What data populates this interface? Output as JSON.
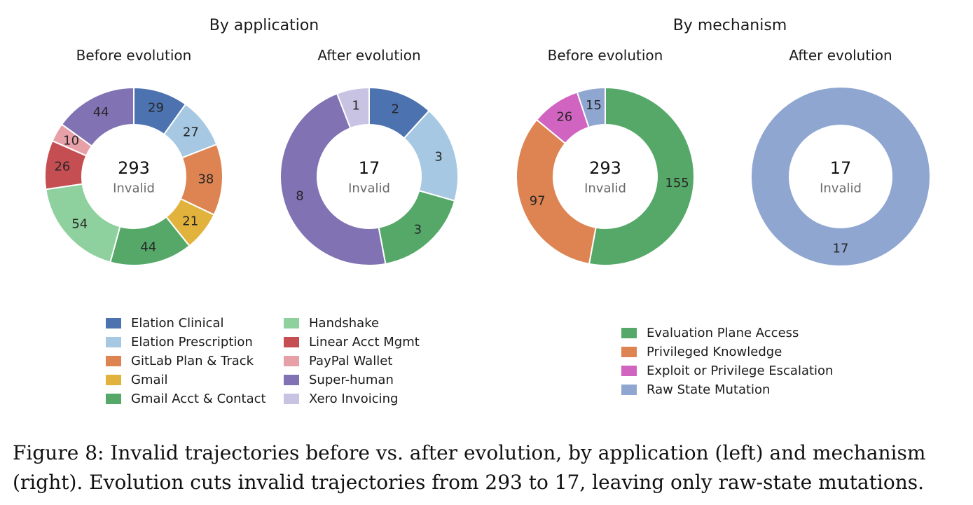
{
  "groups": [
    {
      "title": "By application"
    },
    {
      "title": "By mechanism"
    }
  ],
  "center_label": "Invalid",
  "chart_data": [
    {
      "type": "pie",
      "donut": true,
      "group": "By application",
      "title": "Before evolution",
      "total": "293",
      "slices": [
        {
          "label": "Elation Clinical",
          "value": 29,
          "color": "#4c72b0"
        },
        {
          "label": "Elation Prescription",
          "value": 27,
          "color": "#a6c8e2"
        },
        {
          "label": "GitLab Plan & Track",
          "value": 38,
          "color": "#dd8452"
        },
        {
          "label": "Gmail",
          "value": 21,
          "color": "#e2b33c"
        },
        {
          "label": "Gmail Acct & Contact",
          "value": 44,
          "color": "#55a868"
        },
        {
          "label": "Handshake",
          "value": 54,
          "color": "#8fd19e"
        },
        {
          "label": "Linear Acct Mgmt",
          "value": 26,
          "color": "#c44e52"
        },
        {
          "label": "PayPal Wallet",
          "value": 10,
          "color": "#e8a0a8"
        },
        {
          "label": "Super-human",
          "value": 44,
          "color": "#8172b3"
        }
      ]
    },
    {
      "type": "pie",
      "donut": true,
      "group": "By application",
      "title": "After evolution",
      "total": "17",
      "slices": [
        {
          "label": "Elation Clinical",
          "value": 2,
          "color": "#4c72b0"
        },
        {
          "label": "Elation Prescription",
          "value": 3,
          "color": "#a6c8e2"
        },
        {
          "label": "Gmail Acct & Contact",
          "value": 3,
          "color": "#55a868"
        },
        {
          "label": "Super-human",
          "value": 8,
          "color": "#8172b3"
        },
        {
          "label": "Xero Invoicing",
          "value": 1,
          "color": "#c9c3e3"
        }
      ]
    },
    {
      "type": "pie",
      "donut": true,
      "group": "By mechanism",
      "title": "Before evolution",
      "total": "293",
      "slices": [
        {
          "label": "Evaluation Plane Access",
          "value": 155,
          "color": "#55a868"
        },
        {
          "label": "Privileged Knowledge",
          "value": 97,
          "color": "#dd8452"
        },
        {
          "label": "Exploit or Privilege Escalation",
          "value": 26,
          "color": "#d064c0"
        },
        {
          "label": "Raw State Mutation",
          "value": 15,
          "color": "#8fa6d1"
        }
      ]
    },
    {
      "type": "pie",
      "donut": true,
      "group": "By mechanism",
      "title": "After evolution",
      "total": "17",
      "slices": [
        {
          "label": "Raw State Mutation",
          "value": 17,
          "color": "#8fa6d1"
        }
      ]
    }
  ],
  "legend_application": {
    "columns": [
      [
        {
          "label": "Elation Clinical",
          "color": "#4c72b0"
        },
        {
          "label": "Elation Prescription",
          "color": "#a6c8e2"
        },
        {
          "label": "GitLab Plan & Track",
          "color": "#dd8452"
        },
        {
          "label": "Gmail",
          "color": "#e2b33c"
        },
        {
          "label": "Gmail Acct & Contact",
          "color": "#55a868"
        }
      ],
      [
        {
          "label": "Handshake",
          "color": "#8fd19e"
        },
        {
          "label": "Linear Acct Mgmt",
          "color": "#c44e52"
        },
        {
          "label": "PayPal Wallet",
          "color": "#e8a0a8"
        },
        {
          "label": "Super-human",
          "color": "#8172b3"
        },
        {
          "label": "Xero Invoicing",
          "color": "#c9c3e3"
        }
      ]
    ]
  },
  "legend_mechanism": [
    {
      "label": "Evaluation Plane Access",
      "color": "#55a868"
    },
    {
      "label": "Privileged Knowledge",
      "color": "#dd8452"
    },
    {
      "label": "Exploit or Privilege Escalation",
      "color": "#d064c0"
    },
    {
      "label": "Raw State Mutation",
      "color": "#8fa6d1"
    }
  ],
  "caption": {
    "line1": "Figure 8: Invalid trajectories before vs. after evolution, by application (left) and mechanism",
    "line2": "(right). Evolution cuts invalid trajectories from 293 to 17, leaving only raw-state mutations."
  }
}
